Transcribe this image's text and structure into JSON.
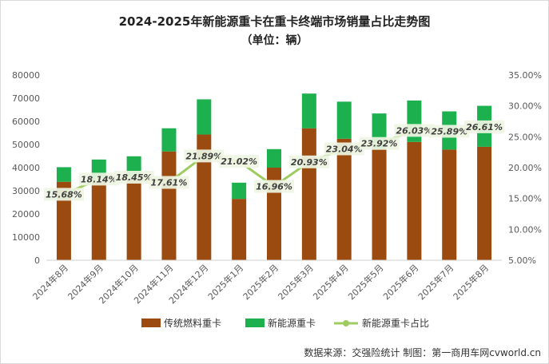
{
  "chart_data": {
    "type": "bar",
    "title": "2024-2025年新能源重卡在重卡终端市场销量占比走势图",
    "subtitle": "（单位：辆）",
    "categories": [
      "2024年8月",
      "2024年9月",
      "2024年10月",
      "2024年11月",
      "2024年12月",
      "2025年1月",
      "2025年2月",
      "2025年3月",
      "2025年4月",
      "2025年5月",
      "2025年6月",
      "2025年7月",
      "2025年8月"
    ],
    "series": [
      {
        "name": "传统燃料重卡",
        "type": "bar-stacked",
        "color": "#9b4a10",
        "values": [
          33900,
          35500,
          36500,
          47000,
          54300,
          26500,
          40000,
          57000,
          52500,
          48200,
          51100,
          47800,
          49000
        ]
      },
      {
        "name": "新能源重卡",
        "type": "bar-stacked",
        "color": "#1cb04e",
        "values": [
          6300,
          8000,
          8400,
          10000,
          15200,
          7000,
          8000,
          15000,
          16000,
          15200,
          17900,
          16500,
          17700
        ]
      },
      {
        "name": "新能源重卡占比",
        "type": "line",
        "axis": "right",
        "color": "#9fcc62",
        "values": [
          15.68,
          18.14,
          18.45,
          17.61,
          21.89,
          21.02,
          16.96,
          20.93,
          23.04,
          23.92,
          26.03,
          25.89,
          26.61
        ],
        "labels": [
          "15.68%",
          "18.14%",
          "18.45%",
          "17.61%",
          "21.89%",
          "21.02%",
          "16.96%",
          "20.93%",
          "23.04%",
          "23.92%",
          "26.03%",
          "25.89%",
          "26.61%"
        ]
      }
    ],
    "y_left": {
      "min": 0,
      "max": 80000,
      "ticks": [
        "0",
        "10000",
        "20000",
        "30000",
        "40000",
        "50000",
        "60000",
        "70000",
        "80000"
      ]
    },
    "y_right": {
      "min": 5,
      "max": 35,
      "ticks": [
        "5.00%",
        "10.00%",
        "15.00%",
        "20.00%",
        "25.00%",
        "30.00%",
        "35.00%"
      ]
    },
    "legend_position": "bottom",
    "grid": false
  },
  "source": "数据来源：交强险统计  制图：第一商用车网cvworld.cn"
}
